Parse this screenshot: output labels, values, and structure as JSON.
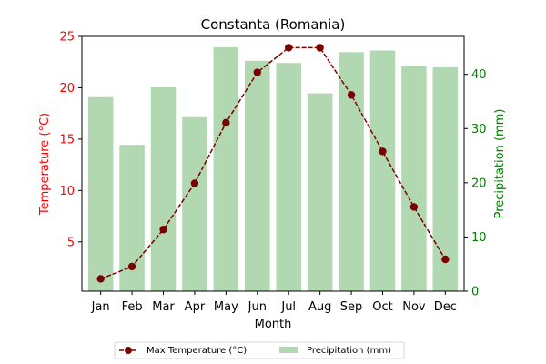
{
  "chart_data": {
    "type": "bar+line",
    "title": "Constanta (Romania)",
    "xlabel": "Month",
    "categories": [
      "Jan",
      "Feb",
      "Mar",
      "Apr",
      "May",
      "Jun",
      "Jul",
      "Aug",
      "Sep",
      "Oct",
      "Nov",
      "Dec"
    ],
    "left_axis": {
      "label": "Temperature (°C)",
      "color": "#ff0000",
      "ylim": [
        0.2,
        25
      ],
      "ticks": [
        5,
        10,
        15,
        20,
        25
      ]
    },
    "right_axis": {
      "label": "Precipitation (mm)",
      "color": "#008000",
      "ylim": [
        0,
        47
      ],
      "ticks": [
        0,
        10,
        20,
        30,
        40
      ]
    },
    "series": [
      {
        "name": "Max Temperature (°C)",
        "type": "line",
        "axis": "left",
        "color": "#7a0000",
        "values": [
          1.4,
          2.6,
          6.2,
          10.7,
          16.6,
          21.5,
          23.9,
          23.9,
          19.3,
          13.8,
          8.4,
          3.3
        ]
      },
      {
        "name": "Precipitation (mm)",
        "type": "bar",
        "axis": "right",
        "color": "#b2d8b2",
        "values": [
          35.8,
          27.0,
          37.6,
          32.1,
          45.0,
          42.5,
          42.1,
          36.5,
          44.1,
          44.4,
          41.6,
          41.3
        ]
      }
    ],
    "legend": {
      "placement": "bottom",
      "columns": 2
    }
  }
}
